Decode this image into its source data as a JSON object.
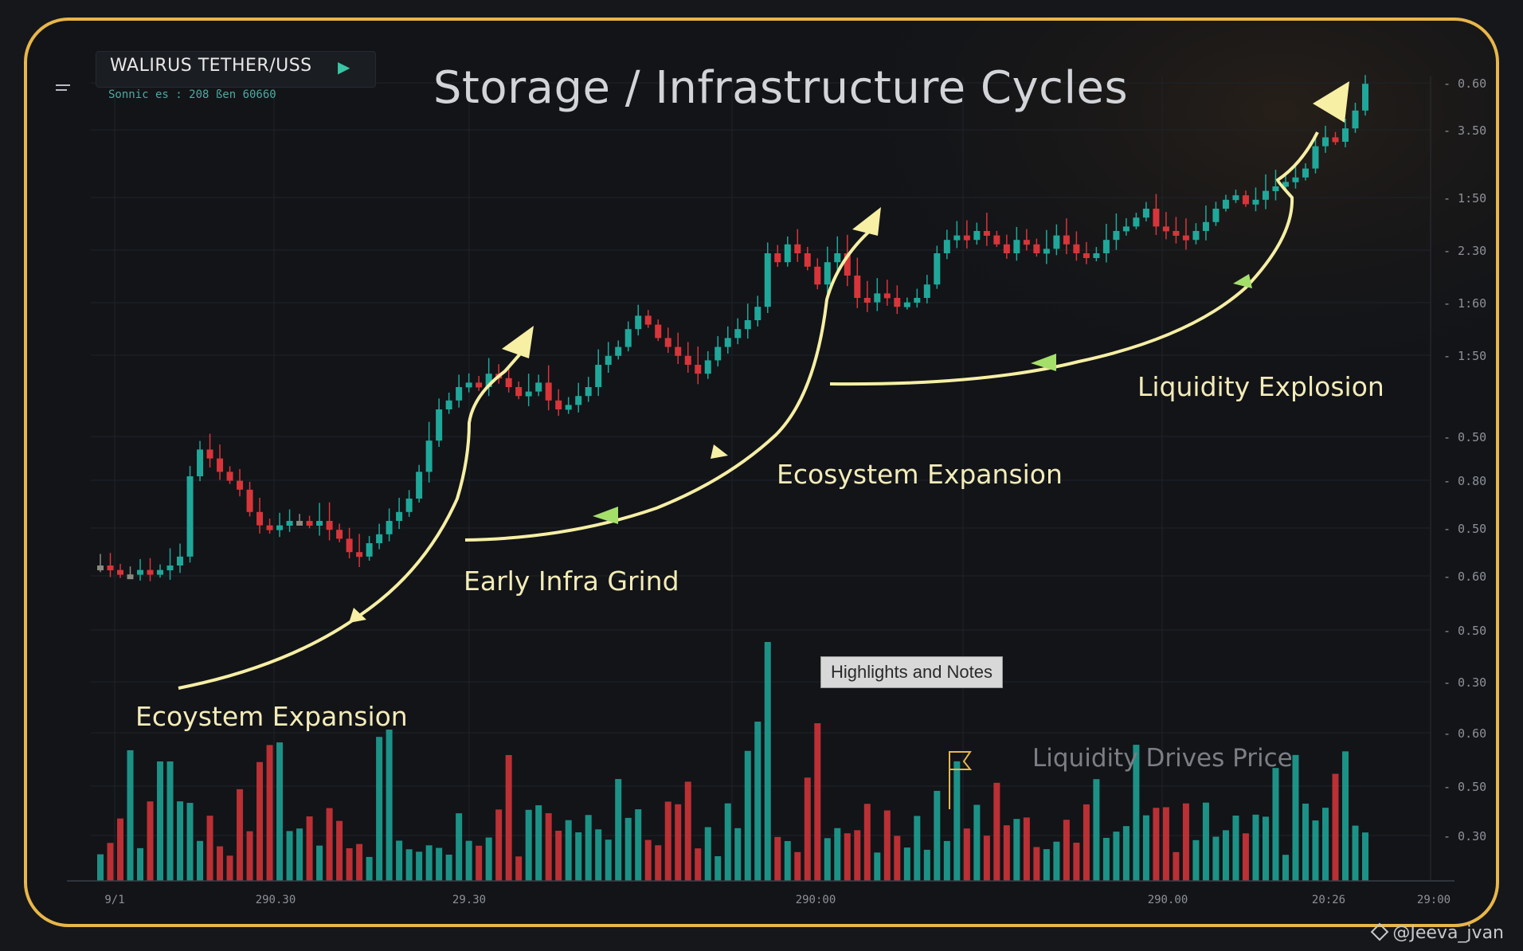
{
  "header": {
    "symbol": "WALIRUS  TETHER/USS",
    "subtitle": "Sonnic es : 208 ßen 60660"
  },
  "colors": {
    "frame": "#e8b64a",
    "background": "#121418",
    "bull": "#1fa89a",
    "bear": "#d8353a",
    "neutral": "#8a8a80",
    "arrow_yellow": "#f6efa4",
    "arrow_green": "#a4df6a",
    "grid": "#1f232a"
  },
  "icons": [
    "menu-icon",
    "play-icon",
    "arrow-icon",
    "flag-icon"
  ],
  "annotations": {
    "highlights_box": "Highlights and Notes",
    "drives_note": "Liquidity Drives Price",
    "watermark": "@Jeeva_jvan"
  },
  "chart_data": {
    "type": "candlestick",
    "title": "Storage / Infrastructure Cycles",
    "y_ticks": [
      "0.60",
      "3.50",
      "1:50",
      "2.30",
      "1:60",
      "1:50",
      "0.50",
      "0.80",
      "0.50",
      "0.60",
      "0.50",
      "0.30",
      "0.60",
      "0.50",
      "0.30"
    ],
    "x_ticks": [
      "9/1",
      "290.30",
      "29.30",
      "290:00",
      "290.00",
      "20:26",
      "29:00"
    ],
    "grid": true,
    "phases": [
      {
        "label": "Ecoystem Expansion"
      },
      {
        "label": "Early Infra Grind"
      },
      {
        "label": "Ecosystem Expansion"
      },
      {
        "label": "Liquidity Explosion"
      }
    ],
    "price_path_relative": [
      0.1,
      0.09,
      0.08,
      0.08,
      0.09,
      0.08,
      0.09,
      0.1,
      0.12,
      0.3,
      0.36,
      0.34,
      0.31,
      0.29,
      0.27,
      0.22,
      0.19,
      0.18,
      0.19,
      0.2,
      0.2,
      0.19,
      0.2,
      0.18,
      0.16,
      0.13,
      0.12,
      0.15,
      0.17,
      0.2,
      0.22,
      0.25,
      0.31,
      0.38,
      0.45,
      0.47,
      0.5,
      0.51,
      0.5,
      0.53,
      0.52,
      0.5,
      0.48,
      0.49,
      0.51,
      0.47,
      0.45,
      0.46,
      0.48,
      0.5,
      0.55,
      0.57,
      0.59,
      0.63,
      0.66,
      0.64,
      0.61,
      0.59,
      0.57,
      0.55,
      0.53,
      0.56,
      0.59,
      0.61,
      0.63,
      0.65,
      0.68,
      0.8,
      0.78,
      0.82,
      0.8,
      0.77,
      0.73,
      0.78,
      0.8,
      0.75,
      0.7,
      0.69,
      0.71,
      0.7,
      0.68,
      0.69,
      0.7,
      0.73,
      0.8,
      0.83,
      0.84,
      0.83,
      0.85,
      0.84,
      0.82,
      0.8,
      0.83,
      0.82,
      0.8,
      0.81,
      0.84,
      0.82,
      0.8,
      0.79,
      0.8,
      0.83,
      0.85,
      0.86,
      0.88,
      0.9,
      0.86,
      0.85,
      0.84,
      0.83,
      0.85,
      0.87,
      0.9,
      0.92,
      0.93,
      0.91,
      0.92,
      0.94,
      0.95,
      0.96,
      0.97,
      0.99,
      1.04,
      1.06,
      1.05,
      1.08,
      1.12,
      1.18
    ]
  }
}
